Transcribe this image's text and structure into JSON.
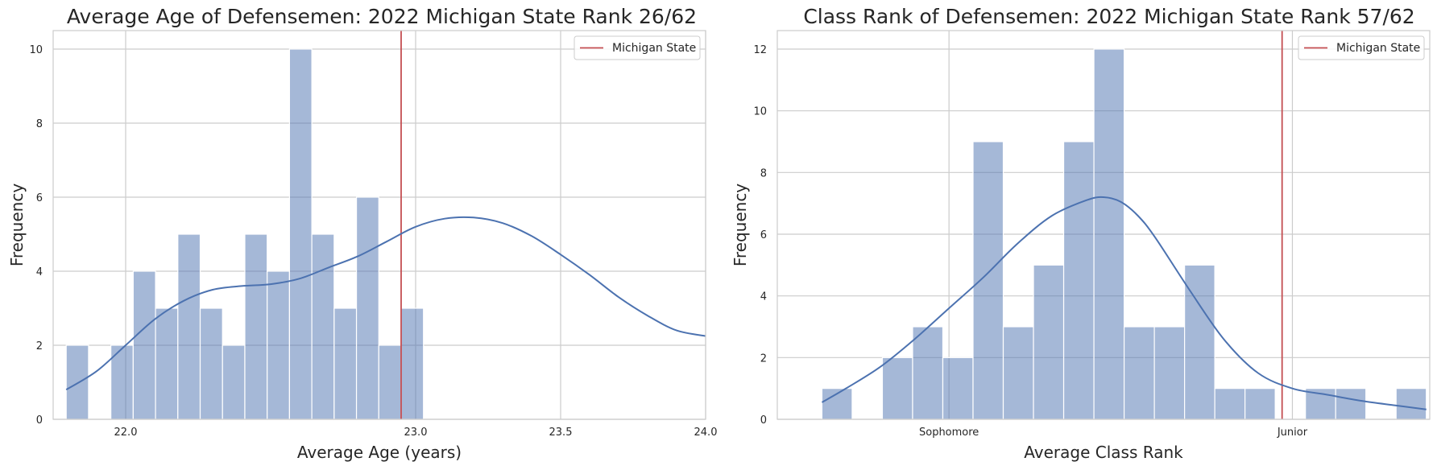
{
  "colors": {
    "bar": "#4c72b0",
    "kde": "#4c72b0",
    "reference_line": "#c44e52",
    "grid": "#cccccc"
  },
  "chart_data": [
    {
      "type": "bar",
      "title": "Average Age of Defensemen: 2022 Michigan State Rank 26/62",
      "xlabel": "Average Age (years)",
      "ylabel": "Frequency",
      "xlim": [
        21.75,
        24.0
      ],
      "ylim": [
        0,
        10.5
      ],
      "x_ticks": [
        22.0,
        23.0,
        23.5,
        24.0
      ],
      "x_tick_labels": [
        "22.0",
        "23.0",
        "23.5",
        "24.0"
      ],
      "y_ticks": [
        0,
        2,
        4,
        6,
        8,
        10
      ],
      "y_tick_labels": [
        "0",
        "2",
        "4",
        "6",
        "8",
        "10"
      ],
      "bin_edges": [
        21.795,
        21.872,
        21.949,
        22.026,
        22.103,
        22.18,
        22.257,
        22.334,
        22.411,
        22.488,
        22.565,
        22.642,
        22.719,
        22.796,
        22.873,
        22.95,
        23.027
      ],
      "counts": [
        2,
        0,
        2,
        4,
        3,
        5,
        3,
        2,
        5,
        4,
        10,
        5,
        3,
        6,
        2,
        3
      ],
      "kde": {
        "x": [
          21.795,
          21.9,
          22.0,
          22.1,
          22.2,
          22.3,
          22.4,
          22.5,
          22.6,
          22.7,
          22.8,
          22.9,
          23.0,
          23.1,
          23.2,
          23.3,
          23.4,
          23.5,
          23.6,
          23.7,
          23.8,
          23.9,
          24.0
        ],
        "y": [
          0.8,
          1.3,
          2.0,
          2.7,
          3.2,
          3.5,
          3.6,
          3.65,
          3.8,
          4.1,
          4.4,
          4.8,
          5.2,
          5.42,
          5.45,
          5.3,
          4.95,
          4.45,
          3.9,
          3.3,
          2.8,
          2.4,
          2.25
        ]
      },
      "reference_line": {
        "label": "Michigan State",
        "x": 22.95
      },
      "legend": {
        "position": "top-right",
        "entries": [
          "Michigan State"
        ]
      },
      "grid": true
    },
    {
      "type": "bar",
      "title": "Class Rank of Defensemen: 2022 Michigan State Rank 57/62",
      "xlabel": "Average Class Rank",
      "ylabel": "Frequency",
      "xlim": [
        1.5,
        3.4
      ],
      "ylim": [
        0,
        12.6
      ],
      "x_ticks": [
        2.0,
        3.0
      ],
      "x_tick_labels": [
        "Sophomore",
        "Junior"
      ],
      "y_ticks": [
        0,
        2,
        4,
        6,
        8,
        10,
        12
      ],
      "y_tick_labels": [
        "0",
        "2",
        "4",
        "6",
        "8",
        "10",
        "12"
      ],
      "bin_edges": [
        1.63,
        1.718,
        1.806,
        1.894,
        1.982,
        2.07,
        2.158,
        2.246,
        2.334,
        2.422,
        2.51,
        2.598,
        2.686,
        2.774,
        2.862,
        2.95,
        3.038,
        3.126,
        3.214,
        3.302,
        3.39
      ],
      "counts": [
        1,
        0,
        2,
        3,
        2,
        9,
        3,
        5,
        9,
        12,
        3,
        3,
        5,
        1,
        1,
        0,
        1,
        1,
        0,
        1
      ],
      "kde": {
        "x": [
          1.63,
          1.7,
          1.8,
          1.9,
          2.0,
          2.1,
          2.2,
          2.3,
          2.4,
          2.45,
          2.5,
          2.55,
          2.6,
          2.7,
          2.8,
          2.9,
          3.0,
          3.1,
          3.2,
          3.3,
          3.39
        ],
        "y": [
          0.55,
          1.0,
          1.7,
          2.6,
          3.6,
          4.6,
          5.7,
          6.6,
          7.1,
          7.2,
          7.05,
          6.6,
          5.9,
          4.2,
          2.6,
          1.5,
          1.0,
          0.8,
          0.6,
          0.45,
          0.32
        ]
      },
      "reference_line": {
        "label": "Michigan State",
        "x": 2.97
      },
      "legend": {
        "position": "top-right",
        "entries": [
          "Michigan State"
        ]
      },
      "grid": true
    }
  ]
}
